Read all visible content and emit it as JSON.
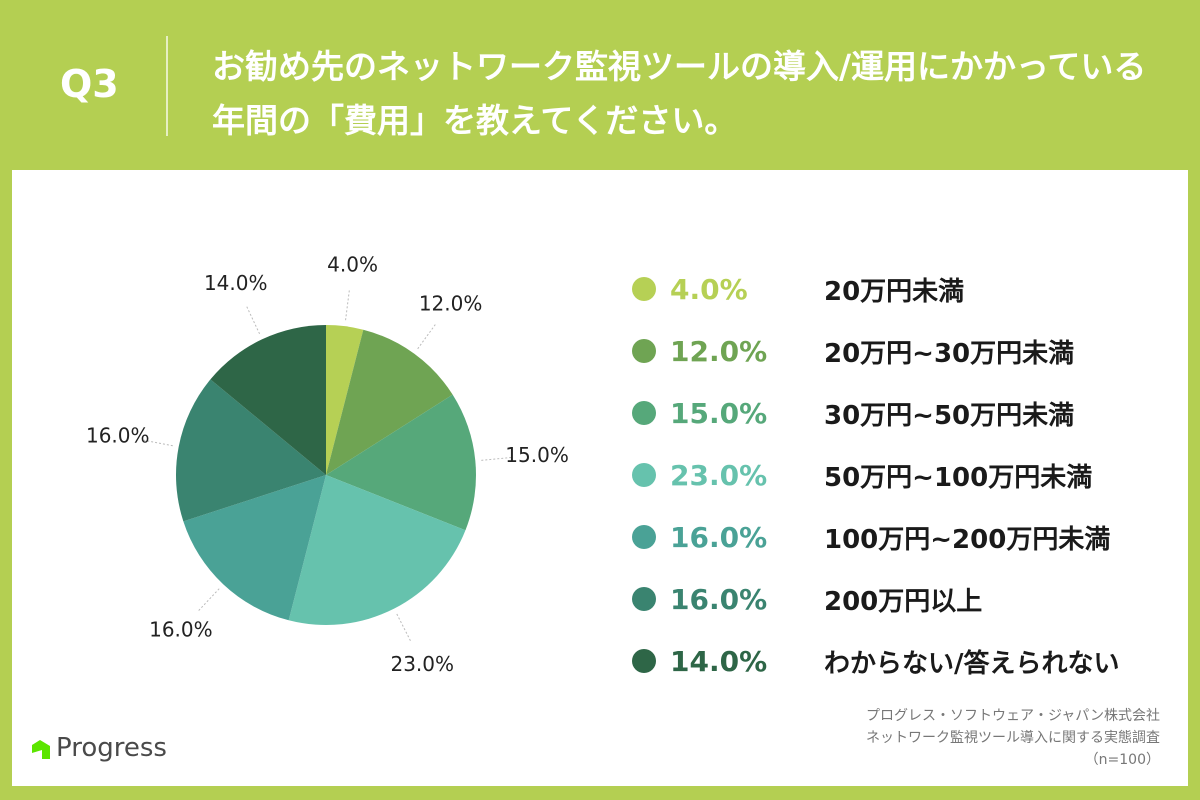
{
  "header": {
    "question": "Q3",
    "title": "お勧め先のネットワーク監視ツールの導入/運用にかかっている年間の「費用」を教えてください。"
  },
  "chart_data": {
    "type": "pie",
    "categories": [
      "20万円未満",
      "20万円~30万円未満",
      "30万円~50万円未満",
      "50万円~100万円未満",
      "100万円~200万円未満",
      "200万円以上",
      "わからない/答えられない"
    ],
    "values": [
      4.0,
      12.0,
      15.0,
      23.0,
      16.0,
      16.0,
      14.0
    ],
    "labels": [
      "4.0%",
      "12.0%",
      "15.0%",
      "23.0%",
      "16.0%",
      "16.0%",
      "14.0%"
    ],
    "colors": [
      "#b6d055",
      "#6fa453",
      "#56a87a",
      "#66c2ad",
      "#4aa296",
      "#3a8470",
      "#2e6647"
    ],
    "legend": "right"
  },
  "footer": {
    "source_line1": "プログレス・ソフトウェア・ジャパン株式会社",
    "source_line2": "ネットワーク監視ツール導入に関する実態調査",
    "sample": "（n=100）",
    "logo_text": "Progress"
  }
}
